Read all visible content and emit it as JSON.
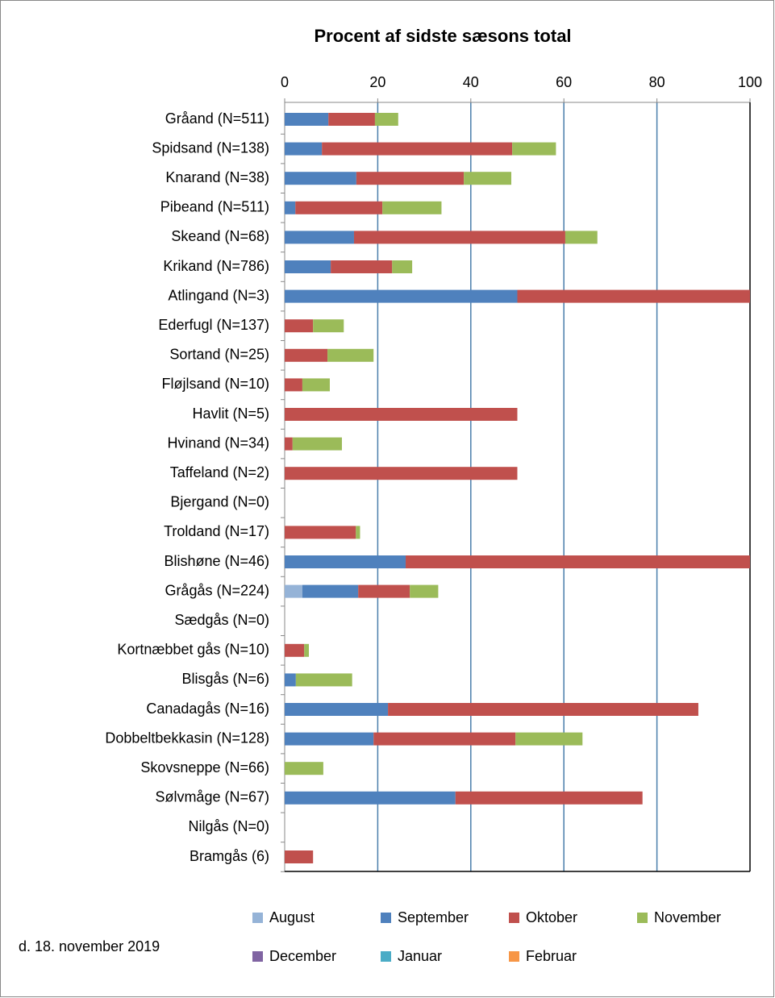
{
  "chart_data": {
    "type": "stacked-barh",
    "title": "Procent af sidste sæsons total",
    "footnote": "d. 18. november  2019",
    "categories": [
      "Gråand (N=511)",
      "Spidsand (N=138)",
      "Knarand (N=38)",
      "Pibeand (N=511)",
      "Skeand (N=68)",
      "Krikand (N=786)",
      "Atlingand (N=3)",
      "Ederfugl (N=137)",
      "Sortand (N=25)",
      "Fløjlsand (N=10)",
      "Havlit (N=5)",
      "Hvinand (N=34)",
      "Taffeland (N=2)",
      "Bjergand (N=0)",
      "Troldand (N=17)",
      "Blishøne (N=46)",
      "Grågås (N=224)",
      "Sædgås (N=0)",
      "Kortnæbbet gås (N=10)",
      "Blisgås (N=6)",
      "Canadagås (N=16)",
      "Dobbeltbekkasin (N=128)",
      "Skovsneppe (N=66)",
      "Sølvmåge (N=67)",
      "Nilgås (N=0)",
      "Bramgås (6)"
    ],
    "series": [
      {
        "name": "August",
        "color": "#95b3d7",
        "values": [
          0,
          0,
          0,
          0,
          0,
          0,
          0,
          0,
          0,
          0,
          0,
          0,
          0,
          0,
          0,
          0,
          3.8,
          0,
          0,
          0,
          0,
          0,
          0,
          0,
          0,
          0
        ]
      },
      {
        "name": "September",
        "color": "#4f81bd",
        "values": [
          9.4,
          8.0,
          15.4,
          2.3,
          14.9,
          9.9,
          50,
          0,
          0,
          0,
          0,
          0,
          0,
          0,
          0,
          26.0,
          12.0,
          0,
          0,
          2.4,
          22.2,
          19.1,
          0,
          36.7,
          0,
          0
        ]
      },
      {
        "name": "Oktober",
        "color": "#c0504d",
        "values": [
          10.0,
          40.9,
          23.1,
          18.7,
          45.4,
          13.2,
          50,
          6.1,
          9.2,
          3.8,
          50,
          1.7,
          50,
          0,
          15.3,
          74.0,
          11.1,
          0,
          4.2,
          0,
          66.7,
          30.5,
          0,
          40.2,
          0,
          6.1
        ]
      },
      {
        "name": "November",
        "color": "#9bbb59",
        "values": [
          5.0,
          9.4,
          10.2,
          12.7,
          6.9,
          4.3,
          0,
          6.6,
          9.9,
          5.9,
          0,
          10.6,
          0,
          0,
          0.9,
          0,
          6.1,
          0,
          1.0,
          12.1,
          0,
          14.4,
          8.3,
          0,
          0,
          0
        ]
      },
      {
        "name": "December",
        "color": "#8064a2",
        "values": [
          0,
          0,
          0,
          0,
          0,
          0,
          0,
          0,
          0,
          0,
          0,
          0,
          0,
          0,
          0,
          0,
          0,
          0,
          0,
          0,
          0,
          0,
          0,
          0,
          0,
          0
        ]
      },
      {
        "name": "Januar",
        "color": "#4bacc6",
        "values": [
          0,
          0,
          0,
          0,
          0,
          0,
          0,
          0,
          0,
          0,
          0,
          0,
          0,
          0,
          0,
          0,
          0,
          0,
          0,
          0,
          0,
          0,
          0,
          0,
          0,
          0
        ]
      },
      {
        "name": "Februar",
        "color": "#f79646",
        "values": [
          0,
          0,
          0,
          0,
          0,
          0,
          0,
          0,
          0,
          0,
          0,
          0,
          0,
          0,
          0,
          0,
          0,
          0,
          0,
          0,
          0,
          0,
          0,
          0,
          0,
          0
        ]
      }
    ],
    "xlim": [
      0,
      100
    ],
    "xticks": [
      0,
      20,
      40,
      60,
      80,
      100
    ],
    "grid": true,
    "grid_color": "#4a7eab"
  }
}
